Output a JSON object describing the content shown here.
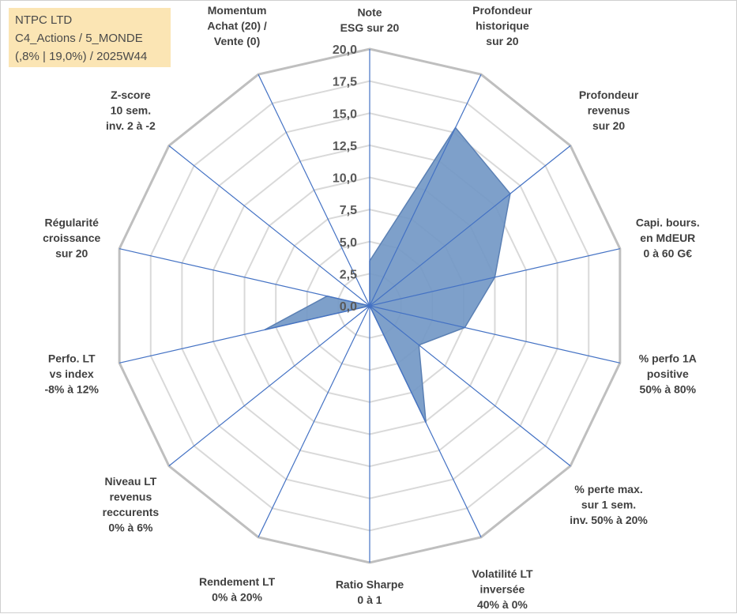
{
  "info_box": {
    "line1": "NTPC LTD",
    "line2": "C4_Actions / 5_MONDE",
    "line3": "(,8% | 19,0%) / 2025W44"
  },
  "colors": {
    "grid_outer": "#bfbfbf",
    "grid_inner": "#d9d9d9",
    "spoke": "#4472c4",
    "series_fill": "#7398c6",
    "series_stroke": "#5b80b4",
    "info_bg": "#fbe5b4"
  },
  "chart_data": {
    "type": "radar",
    "title": "",
    "rmin": 0,
    "rmax": 20,
    "tick_step": 2.5,
    "tick_labels": [
      "0,0",
      "2,5",
      "5,0",
      "7,5",
      "10,0",
      "12,5",
      "15,0",
      "17,5",
      "20,0"
    ],
    "axes": [
      {
        "label": [
          "Note",
          "ESG sur 20"
        ],
        "value": 3.5
      },
      {
        "label": [
          "Profondeur",
          "historique",
          "sur 20"
        ],
        "value": 15.4
      },
      {
        "label": [
          "Profondeur",
          "revenus",
          "sur 20"
        ],
        "value": 14.0
      },
      {
        "label": [
          "Capi. bours.",
          "en MdEUR",
          "0 à 60 G€"
        ],
        "value": 10.0
      },
      {
        "label": [
          "% perfo 1A",
          "positive",
          "50% à 80%"
        ],
        "value": 7.6
      },
      {
        "label": [
          "% perte max.",
          "sur 1 sem.",
          "inv. 50% à 20%"
        ],
        "value": 4.9
      },
      {
        "label": [
          "Volatilité LT",
          "inversée",
          "40% à 0%"
        ],
        "value": 10.1
      },
      {
        "label": [
          "Ratio Sharpe",
          "0 à 1"
        ],
        "value": 0.0
      },
      {
        "label": [
          "Rendement LT",
          "0% à 20%"
        ],
        "value": 0.0
      },
      {
        "label": [
          "Niveau LT",
          "revenus",
          "reccurents",
          "0% à 6%"
        ],
        "value": 0.0
      },
      {
        "label": [
          "Perfo. LT",
          "vs index",
          "-8% à 12%"
        ],
        "value": 8.4
      },
      {
        "label": [
          "Régularité",
          "croissance",
          "sur 20"
        ],
        "value": 3.4
      },
      {
        "label": [
          "Z-score",
          "10 sem.",
          "inv. 2 à -2"
        ],
        "value": 0.0
      },
      {
        "label": [
          "Momentum",
          "Achat (20) /",
          "Vente (0)"
        ],
        "value": 0.0
      }
    ],
    "series": [
      {
        "values": [
          3.5,
          15.4,
          14.0,
          10.0,
          7.6,
          4.9,
          10.1,
          0.0,
          0.0,
          0.0,
          8.4,
          3.4,
          0.0,
          0.0
        ]
      }
    ],
    "grid": true,
    "legend": "none"
  }
}
